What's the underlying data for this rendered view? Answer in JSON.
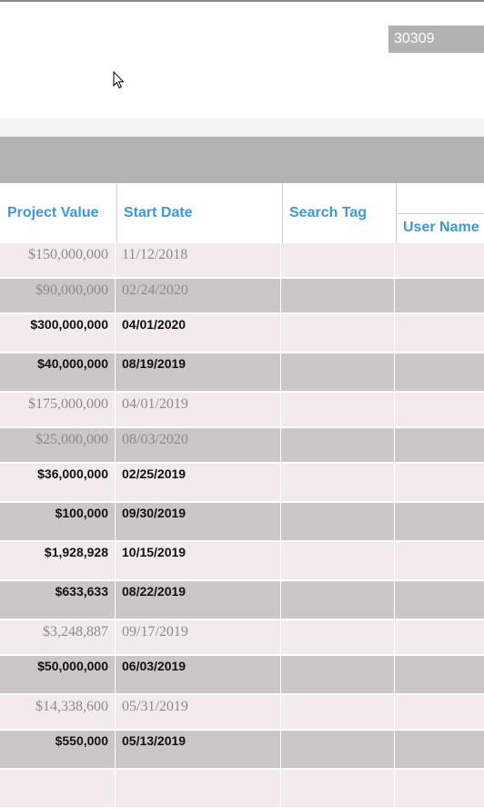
{
  "filter": {
    "zip_value": "30309"
  },
  "table": {
    "columns": {
      "project_value": "Project Value",
      "start_date": "Start Date",
      "search_tag": "Search Tag",
      "user_name": "User Name"
    },
    "rows": [
      {
        "value": "$150,000,000",
        "date": "11/12/2018",
        "style": "plain",
        "shade": "light"
      },
      {
        "value": "$90,000,000",
        "date": "02/24/2020",
        "style": "plain",
        "shade": "dark"
      },
      {
        "value": "$300,000,000",
        "date": "04/01/2020",
        "style": "bold",
        "shade": "light"
      },
      {
        "value": "$40,000,000",
        "date": "08/19/2019",
        "style": "bold",
        "shade": "dark"
      },
      {
        "value": "$175,000,000",
        "date": "04/01/2019",
        "style": "plain",
        "shade": "light"
      },
      {
        "value": "$25,000,000",
        "date": "08/03/2020",
        "style": "plain",
        "shade": "dark"
      },
      {
        "value": "$36,000,000",
        "date": "02/25/2019",
        "style": "bold",
        "shade": "light"
      },
      {
        "value": "$100,000",
        "date": "09/30/2019",
        "style": "bold",
        "shade": "dark"
      },
      {
        "value": "$1,928,928",
        "date": "10/15/2019",
        "style": "bold",
        "shade": "light"
      },
      {
        "value": "$633,633",
        "date": "08/22/2019",
        "style": "bold",
        "shade": "dark"
      },
      {
        "value": "$3,248,887",
        "date": "09/17/2019",
        "style": "plain",
        "shade": "light"
      },
      {
        "value": "$50,000,000",
        "date": "06/03/2019",
        "style": "bold",
        "shade": "dark"
      },
      {
        "value": "$14,338,600",
        "date": "05/31/2019",
        "style": "plain",
        "shade": "light"
      },
      {
        "value": "$550,000",
        "date": "05/13/2019",
        "style": "bold",
        "shade": "dark"
      },
      {
        "value": "",
        "date": "",
        "style": "bold",
        "shade": "light"
      }
    ]
  }
}
